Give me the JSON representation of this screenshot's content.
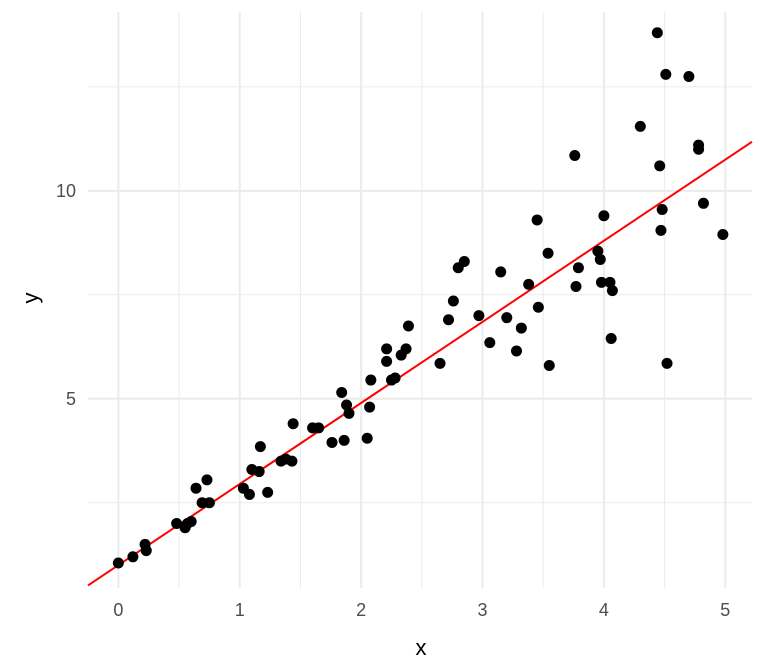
{
  "chart_data": {
    "type": "scatter",
    "title": "",
    "xlabel": "x",
    "ylabel": "y",
    "xlim": [
      -0.25,
      5.22
    ],
    "ylim": [
      0.45,
      14.3
    ],
    "x_ticks": [
      0,
      1,
      2,
      3,
      4,
      5
    ],
    "y_ticks": [
      5,
      10
    ],
    "grid": true,
    "background": "#ffffff",
    "grid_color": "#ebebeb",
    "point_color": "#000000",
    "line_color": "#ff0000",
    "fit_line": {
      "intercept": 1.0,
      "slope": 1.95
    },
    "points": [
      [
        0.0,
        1.05
      ],
      [
        0.12,
        1.2
      ],
      [
        0.22,
        1.5
      ],
      [
        0.23,
        1.35
      ],
      [
        0.48,
        2.0
      ],
      [
        0.55,
        1.9
      ],
      [
        0.57,
        2.0
      ],
      [
        0.6,
        2.05
      ],
      [
        0.64,
        2.85
      ],
      [
        0.69,
        2.5
      ],
      [
        0.73,
        3.05
      ],
      [
        0.75,
        2.5
      ],
      [
        1.03,
        2.85
      ],
      [
        1.08,
        2.7
      ],
      [
        1.1,
        3.3
      ],
      [
        1.16,
        3.25
      ],
      [
        1.17,
        3.85
      ],
      [
        1.23,
        2.75
      ],
      [
        1.34,
        3.5
      ],
      [
        1.38,
        3.55
      ],
      [
        1.43,
        3.5
      ],
      [
        1.44,
        4.4
      ],
      [
        1.6,
        4.3
      ],
      [
        1.65,
        4.3
      ],
      [
        1.76,
        3.95
      ],
      [
        1.84,
        5.15
      ],
      [
        1.86,
        4.0
      ],
      [
        1.88,
        4.85
      ],
      [
        1.9,
        4.65
      ],
      [
        2.05,
        4.05
      ],
      [
        2.07,
        4.8
      ],
      [
        2.08,
        5.45
      ],
      [
        2.21,
        5.9
      ],
      [
        2.21,
        6.2
      ],
      [
        2.25,
        5.45
      ],
      [
        2.28,
        5.5
      ],
      [
        2.33,
        6.05
      ],
      [
        2.37,
        6.2
      ],
      [
        2.39,
        6.75
      ],
      [
        2.65,
        5.85
      ],
      [
        2.72,
        6.9
      ],
      [
        2.76,
        7.35
      ],
      [
        2.8,
        8.15
      ],
      [
        2.85,
        8.3
      ],
      [
        2.97,
        7.0
      ],
      [
        3.06,
        6.35
      ],
      [
        3.15,
        8.05
      ],
      [
        3.2,
        6.95
      ],
      [
        3.28,
        6.15
      ],
      [
        3.32,
        6.7
      ],
      [
        3.38,
        7.75
      ],
      [
        3.45,
        9.3
      ],
      [
        3.46,
        7.2
      ],
      [
        3.54,
        8.5
      ],
      [
        3.55,
        5.8
      ],
      [
        3.76,
        10.85
      ],
      [
        3.77,
        7.7
      ],
      [
        3.79,
        8.15
      ],
      [
        3.95,
        8.55
      ],
      [
        3.97,
        8.35
      ],
      [
        3.98,
        7.8
      ],
      [
        4.0,
        9.4
      ],
      [
        4.05,
        7.8
      ],
      [
        4.06,
        6.45
      ],
      [
        4.07,
        7.6
      ],
      [
        4.3,
        11.55
      ],
      [
        4.44,
        13.8
      ],
      [
        4.46,
        10.6
      ],
      [
        4.47,
        9.05
      ],
      [
        4.48,
        9.55
      ],
      [
        4.51,
        12.8
      ],
      [
        4.52,
        5.85
      ],
      [
        4.7,
        12.75
      ],
      [
        4.78,
        11.0
      ],
      [
        4.78,
        11.1
      ],
      [
        4.82,
        9.7
      ],
      [
        4.98,
        8.95
      ]
    ]
  }
}
